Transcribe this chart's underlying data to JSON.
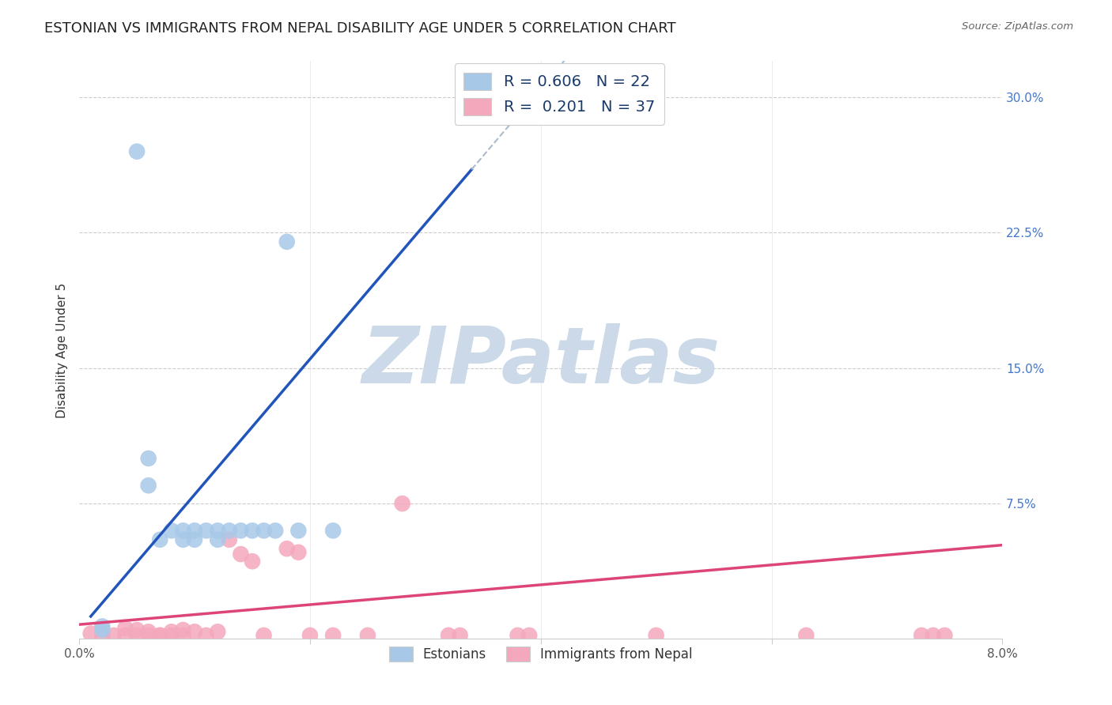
{
  "title": "ESTONIAN VS IMMIGRANTS FROM NEPAL DISABILITY AGE UNDER 5 CORRELATION CHART",
  "source": "Source: ZipAtlas.com",
  "ylabel": "Disability Age Under 5",
  "xlim": [
    0.0,
    0.08
  ],
  "ylim": [
    0.0,
    0.32
  ],
  "watermark": "ZIPatlas",
  "blue_color": "#a8c8e8",
  "pink_color": "#f4a8bc",
  "blue_line_color": "#2255bb",
  "pink_line_color": "#dd4477",
  "dash_color": "#aabbcc",
  "blue_scatter_x": [
    0.005,
    0.006,
    0.006,
    0.007,
    0.008,
    0.009,
    0.009,
    0.01,
    0.01,
    0.011,
    0.012,
    0.012,
    0.013,
    0.014,
    0.015,
    0.016,
    0.017,
    0.018,
    0.019,
    0.002,
    0.002,
    0.022
  ],
  "blue_scatter_y": [
    0.27,
    0.085,
    0.1,
    0.055,
    0.06,
    0.055,
    0.06,
    0.055,
    0.06,
    0.06,
    0.055,
    0.06,
    0.06,
    0.06,
    0.06,
    0.06,
    0.06,
    0.22,
    0.06,
    0.005,
    0.007,
    0.06
  ],
  "pink_scatter_x": [
    0.001,
    0.002,
    0.003,
    0.004,
    0.004,
    0.005,
    0.005,
    0.006,
    0.006,
    0.007,
    0.007,
    0.008,
    0.008,
    0.009,
    0.009,
    0.01,
    0.011,
    0.012,
    0.013,
    0.014,
    0.015,
    0.016,
    0.018,
    0.019,
    0.02,
    0.022,
    0.025,
    0.028,
    0.032,
    0.033,
    0.038,
    0.039,
    0.05,
    0.063,
    0.073,
    0.074,
    0.075
  ],
  "pink_scatter_y": [
    0.003,
    0.002,
    0.002,
    0.002,
    0.006,
    0.002,
    0.005,
    0.002,
    0.004,
    0.002,
    0.002,
    0.002,
    0.004,
    0.002,
    0.005,
    0.004,
    0.002,
    0.004,
    0.055,
    0.047,
    0.043,
    0.002,
    0.05,
    0.048,
    0.002,
    0.002,
    0.002,
    0.075,
    0.002,
    0.002,
    0.002,
    0.002,
    0.002,
    0.002,
    0.002,
    0.002,
    0.002
  ],
  "grid_color": "#cccccc",
  "background_color": "#ffffff",
  "title_fontsize": 13,
  "axis_label_fontsize": 11,
  "tick_fontsize": 11,
  "watermark_color": "#ccd9e8",
  "watermark_fontsize": 72,
  "right_tick_color": "#4477cc",
  "legend_label_color": "#1a3a6b"
}
